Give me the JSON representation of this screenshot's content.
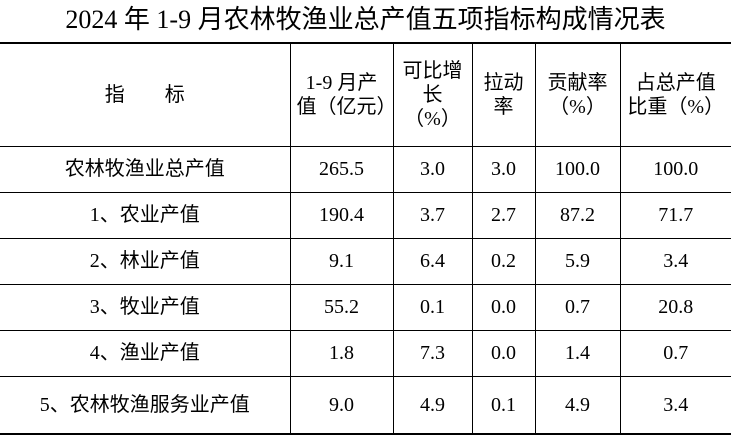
{
  "header": {
    "title": "2024 年 1-9 月农林牧渔业总产值五项指标构成情况表"
  },
  "table": {
    "columns": [
      "指　　标",
      "1-9 月产值（亿元）",
      "可比增长（%）",
      "拉动率",
      "贡献率（%）",
      "占总产值比重（%）"
    ],
    "rows": [
      [
        "农林牧渔业总产值",
        "265.5",
        "3.0",
        "3.0",
        "100.0",
        "100.0"
      ],
      [
        "1、农业产值",
        "190.4",
        "3.7",
        "2.7",
        "87.2",
        "71.7"
      ],
      [
        "2、林业产值",
        "9.1",
        "6.4",
        "0.2",
        "5.9",
        "3.4"
      ],
      [
        "3、牧业产值",
        "55.2",
        "0.1",
        "0.0",
        "0.7",
        "20.8"
      ],
      [
        "4、渔业产值",
        "1.8",
        "7.3",
        "0.0",
        "1.4",
        "0.7"
      ],
      [
        "5、农林牧渔服务业产值",
        "9.0",
        "4.9",
        "0.1",
        "4.9",
        "3.4"
      ]
    ]
  }
}
